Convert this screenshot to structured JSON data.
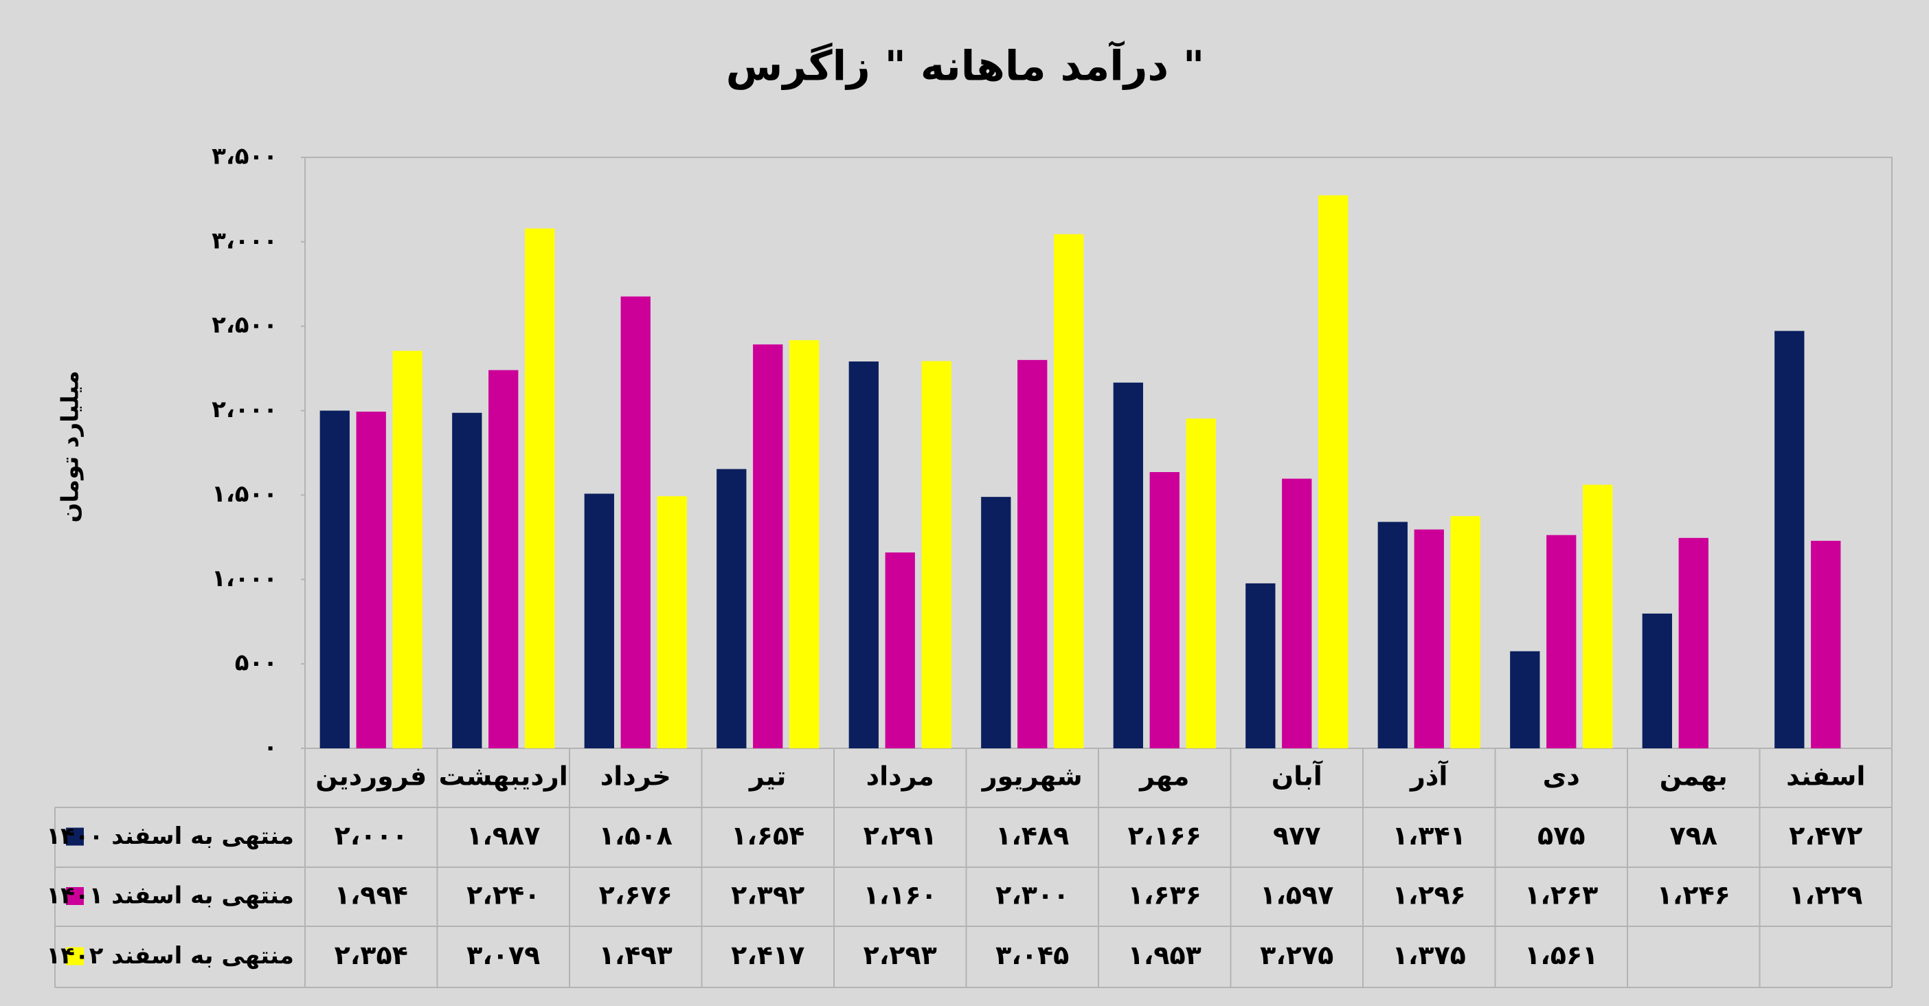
{
  "chart_data": {
    "type": "bar",
    "title": "درآمد ماهانه \" زاگرس \"",
    "y_label": "میلیارد تومان",
    "categories": [
      "فروردین",
      "اردیبهشت",
      "خرداد",
      "تیر",
      "مرداد",
      "شهریور",
      "مهر",
      "آبان",
      "آذر",
      "دی",
      "بهمن",
      "اسفند"
    ],
    "series": [
      {
        "name": "منتهی به اسفند ۱۴۰۰",
        "color": "#0b1f5e",
        "values": [
          2000,
          1987,
          1508,
          1654,
          2291,
          1489,
          2166,
          977,
          1341,
          575,
          798,
          2472
        ],
        "value_labels": [
          "۲،۰۰۰",
          "۱،۹۸۷",
          "۱،۵۰۸",
          "۱،۶۵۴",
          "۲،۲۹۱",
          "۱،۴۸۹",
          "۲،۱۶۶",
          "۹۷۷",
          "۱،۳۴۱",
          "۵۷۵",
          "۷۹۸",
          "۲،۴۷۲"
        ]
      },
      {
        "name": "منتهی به اسفند ۱۴۰۱",
        "color": "#cc0099",
        "values": [
          1994,
          2240,
          2676,
          2392,
          1160,
          2300,
          1636,
          1597,
          1296,
          1263,
          1246,
          1229
        ],
        "value_labels": [
          "۱،۹۹۴",
          "۲،۲۴۰",
          "۲،۶۷۶",
          "۲،۳۹۲",
          "۱،۱۶۰",
          "۲،۳۰۰",
          "۱،۶۳۶",
          "۱،۵۹۷",
          "۱،۲۹۶",
          "۱،۲۶۳",
          "۱،۲۴۶",
          "۱،۲۲۹"
        ]
      },
      {
        "name": "منتهی به اسفند ۱۴۰۲",
        "color": "#ffff00",
        "values": [
          2354,
          3079,
          1493,
          2417,
          2293,
          3045,
          1953,
          3275,
          1375,
          1561,
          null,
          null
        ],
        "value_labels": [
          "۲،۳۵۴",
          "۳،۰۷۹",
          "۱،۴۹۳",
          "۲،۴۱۷",
          "۲،۲۹۳",
          "۳،۰۴۵",
          "۱،۹۵۳",
          "۳،۲۷۵",
          "۱،۳۷۵",
          "۱،۵۶۱",
          null,
          null
        ]
      }
    ],
    "ylim": [
      0,
      3500
    ],
    "yticks": [
      {
        "value": 0,
        "label": "۰"
      },
      {
        "value": 500,
        "label": "۵۰۰"
      },
      {
        "value": 1000,
        "label": "۱،۰۰۰"
      },
      {
        "value": 1500,
        "label": "۱،۵۰۰"
      },
      {
        "value": 2000,
        "label": "۲،۰۰۰"
      },
      {
        "value": 2500,
        "label": "۲،۵۰۰"
      },
      {
        "value": 3000,
        "label": "۳،۰۰۰"
      },
      {
        "value": 3500,
        "label": "۳،۵۰۰"
      }
    ],
    "grid": false
  }
}
